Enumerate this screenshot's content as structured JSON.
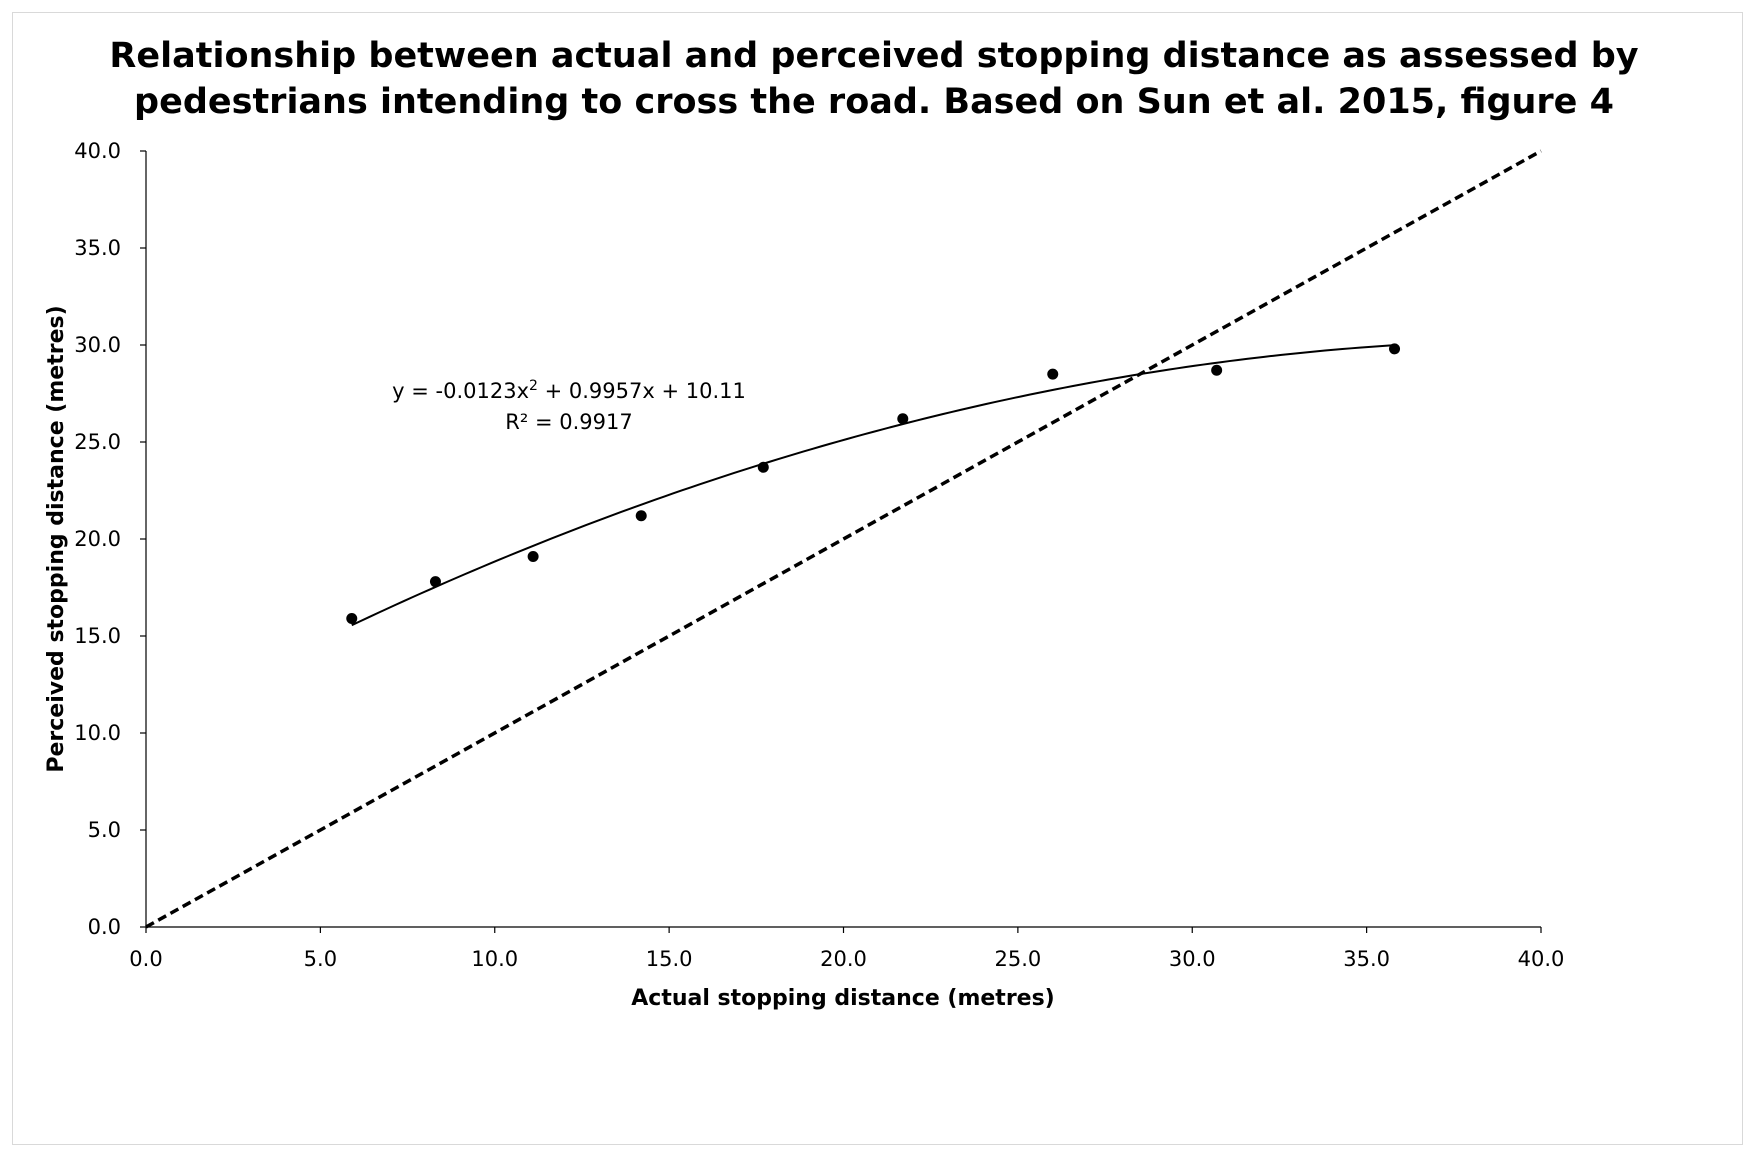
{
  "chart_data": {
    "type": "scatter",
    "title_lines": [
      "Relationship between actual and perceived stopping distance as assessed by",
      "pedestrians intending to cross the road. Based on Sun et al. 2015, figure 4"
    ],
    "xlabel": "Actual stopping distance (metres)",
    "ylabel": "Perceived stopping distance (metres)",
    "xlim": [
      0,
      40
    ],
    "ylim": [
      0,
      40
    ],
    "x_ticks": [
      "0.0",
      "5.0",
      "10.0",
      "15.0",
      "20.0",
      "25.0",
      "30.0",
      "35.0",
      "40.0"
    ],
    "y_ticks": [
      "0.0",
      "5.0",
      "10.0",
      "15.0",
      "20.0",
      "25.0",
      "30.0",
      "35.0",
      "40.0"
    ],
    "grid": false,
    "series": [
      {
        "x": [
          5.9,
          8.3,
          11.1,
          14.2,
          17.7,
          21.7,
          26.0,
          30.7,
          35.8
        ],
        "y": [
          15.9,
          17.8,
          19.1,
          21.2,
          23.7,
          26.2,
          28.5,
          28.7,
          29.8
        ]
      }
    ],
    "trendline": {
      "kind": "polynomial-2",
      "coefficients": [
        -0.0123,
        0.9957,
        10.11
      ],
      "x_range": [
        5.9,
        35.8
      ],
      "equation_text": "y = -0.0123x",
      "equation_exponent": "2",
      "equation_rest": " + 0.9957x + 10.11",
      "r2_text": "R² = 0.9917",
      "line_style": "solid"
    },
    "reference_line": {
      "kind": "identity",
      "x": [
        0,
        40
      ],
      "y": [
        0,
        40
      ],
      "line_style": "dashed"
    }
  }
}
